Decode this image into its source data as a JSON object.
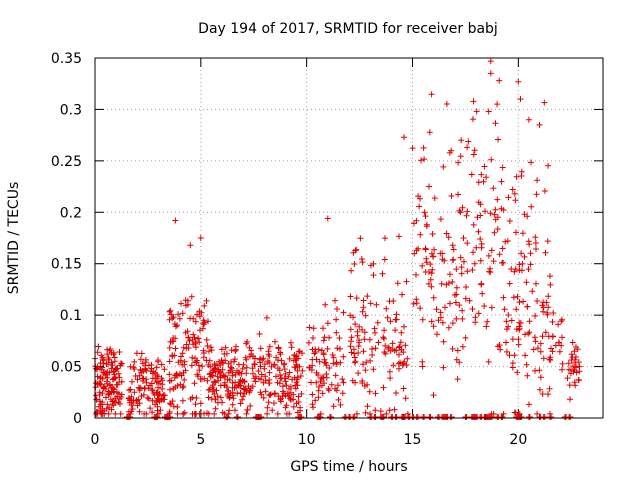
{
  "chart_data": {
    "type": "scatter",
    "title": "Day 194 of 2017, SRMTID for receiver babj",
    "xlabel": "GPS time / hours",
    "ylabel": "SRMTID / TECUs",
    "xlim": [
      0,
      24
    ],
    "ylim": [
      0,
      0.35
    ],
    "xticks": [
      0,
      5,
      10,
      15,
      20
    ],
    "xtick_labels": [
      "0",
      "5",
      "10",
      "15",
      "20"
    ],
    "yticks": [
      0,
      0.05,
      0.1,
      0.15,
      0.2,
      0.25,
      0.3,
      0.35
    ],
    "ytick_labels": [
      "0",
      "0.05",
      "0.1",
      "0.15",
      "0.2",
      "0.25",
      "0.3",
      "0.35"
    ],
    "grid": true,
    "marker": "+",
    "color": "#e00000",
    "point_density": 1200,
    "series": [
      {
        "name": "SRMTID",
        "clusters": [
          {
            "x0": 0.0,
            "x1": 1.3,
            "mean": 0.035,
            "spread": 0.018,
            "count": 140
          },
          {
            "x0": 1.6,
            "x1": 3.3,
            "mean": 0.03,
            "spread": 0.018,
            "count": 120
          },
          {
            "x0": 3.5,
            "x1": 5.5,
            "mean": 0.06,
            "spread": 0.03,
            "count": 150
          },
          {
            "x0": 5.5,
            "x1": 7.5,
            "mean": 0.04,
            "spread": 0.018,
            "count": 150
          },
          {
            "x0": 7.5,
            "x1": 9.8,
            "mean": 0.04,
            "spread": 0.02,
            "count": 140
          },
          {
            "x0": 10.0,
            "x1": 11.8,
            "mean": 0.05,
            "spread": 0.03,
            "count": 80
          },
          {
            "x0": 12.0,
            "x1": 14.8,
            "mean": 0.07,
            "spread": 0.04,
            "count": 130
          },
          {
            "x0": 15.0,
            "x1": 17.7,
            "mean": 0.14,
            "spread": 0.06,
            "count": 120
          },
          {
            "x0": 17.8,
            "x1": 19.5,
            "mean": 0.16,
            "spread": 0.07,
            "count": 80
          },
          {
            "x0": 19.5,
            "x1": 21.5,
            "mean": 0.12,
            "spread": 0.07,
            "count": 110
          },
          {
            "x0": 21.5,
            "x1": 22.1,
            "mean": 0.07,
            "spread": 0.02,
            "count": 20
          },
          {
            "x0": 22.3,
            "x1": 22.9,
            "mean": 0.04,
            "spread": 0.015,
            "count": 30
          }
        ],
        "extremes": [
          {
            "x": 18.7,
            "y": 0.335
          },
          {
            "x": 20.0,
            "y": 0.327
          },
          {
            "x": 20.1,
            "y": 0.31
          },
          {
            "x": 18.6,
            "y": 0.298
          },
          {
            "x": 20.5,
            "y": 0.29
          },
          {
            "x": 21.0,
            "y": 0.285
          },
          {
            "x": 14.6,
            "y": 0.273
          },
          {
            "x": 17.3,
            "y": 0.27
          },
          {
            "x": 3.8,
            "y": 0.192
          },
          {
            "x": 11.0,
            "y": 0.194
          },
          {
            "x": 5.0,
            "y": 0.175
          },
          {
            "x": 4.5,
            "y": 0.168
          }
        ],
        "zeros_x": [
          1.5,
          1.6,
          2.8,
          2.9,
          3.3,
          3.4,
          3.5,
          6.2,
          6.7,
          7.6,
          7.7,
          7.8,
          9.6,
          9.7,
          10.5,
          10.6,
          11.1,
          11.8,
          12.0,
          12.2,
          13.0,
          13.2,
          13.5,
          13.6,
          14.0,
          14.2,
          14.5,
          14.6,
          14.8,
          15.0,
          15.2,
          15.5,
          15.8,
          16.2,
          16.4,
          16.5,
          16.6,
          16.8,
          17.5,
          17.8,
          17.9,
          18.0,
          18.2,
          18.4,
          18.5,
          18.6,
          18.7,
          19.0,
          19.2,
          19.9,
          20.0,
          20.1,
          20.5,
          21.0,
          21.2,
          21.5,
          22.2,
          22.4
        ]
      }
    ]
  }
}
